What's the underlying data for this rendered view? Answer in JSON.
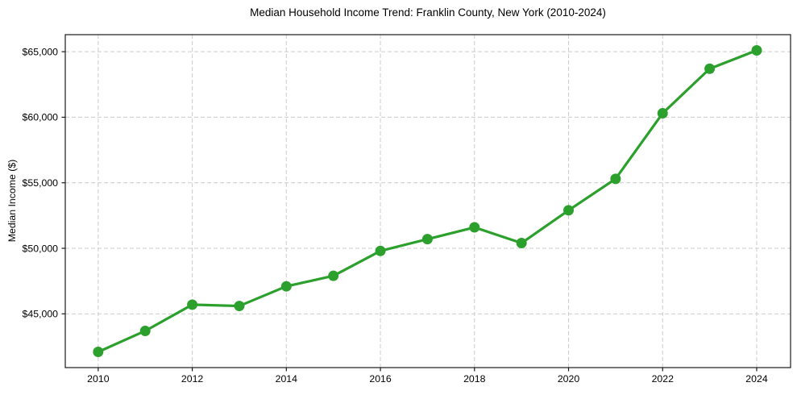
{
  "chart_data": {
    "type": "line",
    "title": "Median Household Income Trend: Franklin County, New York (2010-2024)",
    "xlabel": "",
    "ylabel": "Median Income ($)",
    "x": [
      2010,
      2011,
      2012,
      2013,
      2014,
      2015,
      2016,
      2017,
      2018,
      2019,
      2020,
      2021,
      2022,
      2023,
      2024
    ],
    "values": [
      42100,
      43700,
      45700,
      45600,
      47100,
      47900,
      49800,
      50700,
      51600,
      50400,
      52900,
      55300,
      60300,
      63700,
      65100
    ],
    "series_name": "Median Household Income",
    "xlim": [
      2009.3,
      2024.72
    ],
    "ylim": [
      40900,
      66300
    ],
    "xticks": [
      2010,
      2012,
      2014,
      2016,
      2018,
      2020,
      2022,
      2024
    ],
    "xtick_labels": [
      "2010",
      "2012",
      "2014",
      "2016",
      "2018",
      "2020",
      "2022",
      "2024"
    ],
    "yticks": [
      45000,
      50000,
      55000,
      60000,
      65000
    ],
    "ytick_labels": [
      "$45,000",
      "$50,000",
      "$55,000",
      "$60,000",
      "$65,000"
    ],
    "grid": true,
    "grid_style": "dashed",
    "legend": "none",
    "marker": "circle",
    "colors": {
      "line": "#2ca02c",
      "marker": "#2ca02c",
      "grid": "#cccccc",
      "axis": "#1a1a1a",
      "text": "#000000",
      "background": "#ffffff"
    }
  }
}
